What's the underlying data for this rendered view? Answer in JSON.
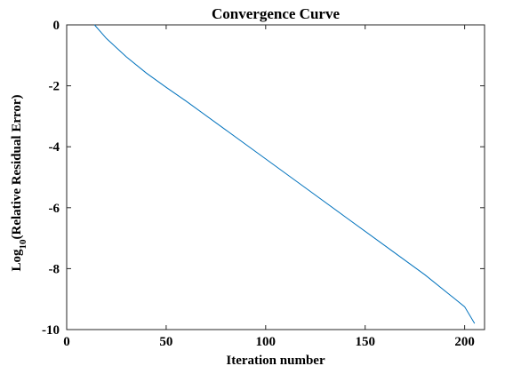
{
  "chart_data": {
    "type": "line",
    "title": "Convergence Curve",
    "xlabel": "Iteration number",
    "ylabel": {
      "prefix": "Log",
      "subscript": "10",
      "suffix": "(Relative Residual Error)"
    },
    "xlim": [
      0,
      210
    ],
    "ylim": [
      -10,
      0
    ],
    "xticks": [
      0,
      50,
      100,
      150,
      200
    ],
    "yticks": [
      0,
      -2,
      -4,
      -6,
      -8,
      -10
    ],
    "grid": false,
    "legend": "none",
    "series": [
      {
        "color": "#0072BD",
        "x": [
          14,
          20,
          30,
          40,
          50,
          60,
          80,
          100,
          120,
          140,
          160,
          180,
          200,
          205
        ],
        "y": [
          0.0,
          -0.45,
          -1.05,
          -1.58,
          -2.05,
          -2.5,
          -3.45,
          -4.4,
          -5.35,
          -6.3,
          -7.25,
          -8.2,
          -9.25,
          -9.8
        ]
      }
    ]
  }
}
